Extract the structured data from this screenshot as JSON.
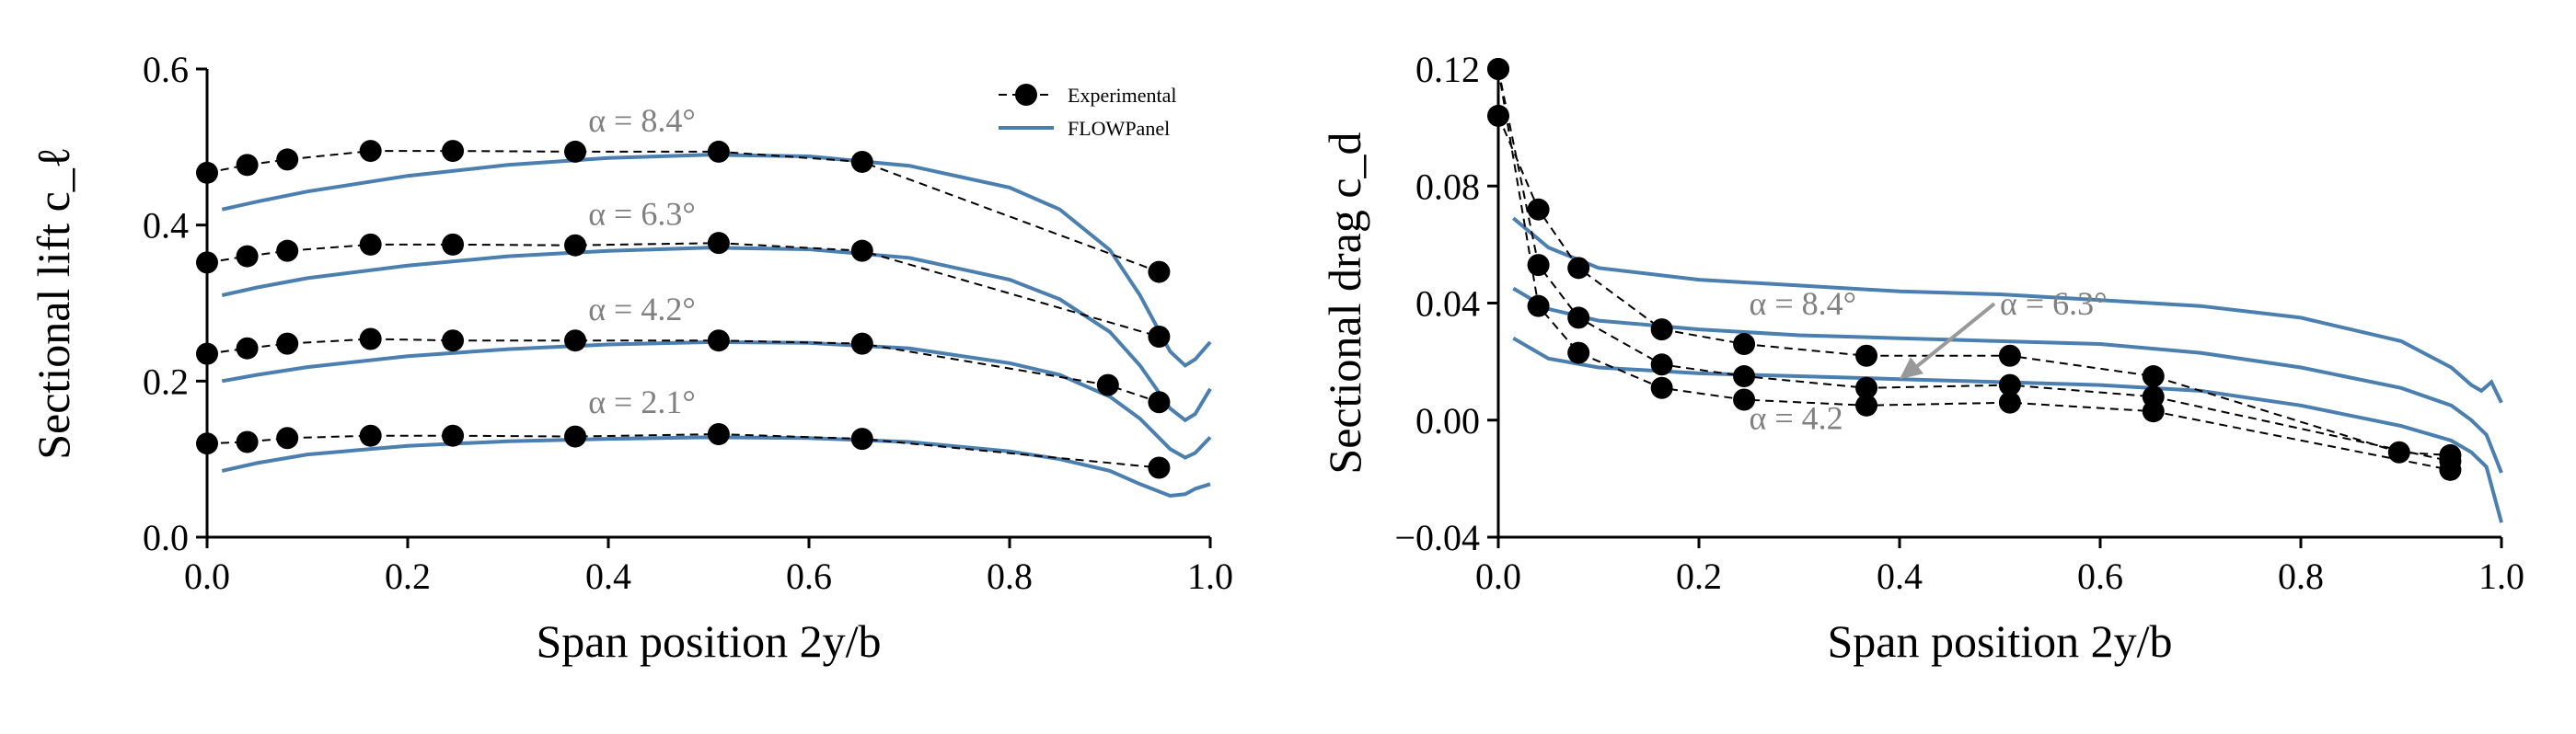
{
  "chart_data": [
    {
      "type": "line",
      "xlabel": "Span position 2y/b",
      "ylabel": "Sectional lift c_ℓ",
      "xlim": [
        0.0,
        1.0
      ],
      "ylim": [
        0.0,
        0.6
      ],
      "xticks": [
        "0.0",
        "0.2",
        "0.4",
        "0.6",
        "0.8",
        "1.0"
      ],
      "yticks": [
        "0.0",
        "0.2",
        "0.4",
        "0.6"
      ],
      "grid": false,
      "legend": {
        "position": "top-right",
        "entries": [
          {
            "label": "Experimental",
            "style": "dashed-marker",
            "color": "#000000"
          },
          {
            "label": "FLOWPanel",
            "style": "solid",
            "color": "#4a7fb0"
          }
        ]
      },
      "annotations": [
        "α = 8.4°",
        "α = 6.3°",
        "α = 4.2°",
        "α = 2.1°"
      ],
      "experimental": [
        {
          "alpha": "8.4",
          "x": [
            0.0,
            0.04,
            0.08,
            0.163,
            0.245,
            0.367,
            0.51,
            0.653,
            0.949
          ],
          "y": [
            0.467,
            0.477,
            0.484,
            0.495,
            0.495,
            0.494,
            0.494,
            0.481,
            0.34
          ]
        },
        {
          "alpha": "6.3",
          "x": [
            0.0,
            0.04,
            0.08,
            0.163,
            0.245,
            0.367,
            0.51,
            0.653,
            0.949
          ],
          "y": [
            0.352,
            0.36,
            0.367,
            0.375,
            0.375,
            0.374,
            0.377,
            0.367,
            0.257
          ]
        },
        {
          "alpha": "4.2",
          "x": [
            0.0,
            0.04,
            0.08,
            0.163,
            0.245,
            0.367,
            0.51,
            0.653,
            0.898,
            0.949
          ],
          "y": [
            0.235,
            0.242,
            0.248,
            0.254,
            0.252,
            0.252,
            0.252,
            0.248,
            0.195,
            0.173
          ]
        },
        {
          "alpha": "2.1",
          "x": [
            0.0,
            0.04,
            0.08,
            0.163,
            0.245,
            0.367,
            0.51,
            0.653,
            0.949
          ],
          "y": [
            0.12,
            0.122,
            0.127,
            0.13,
            0.13,
            0.129,
            0.132,
            0.126,
            0.089
          ]
        }
      ],
      "model": [
        {
          "alpha": "8.4",
          "x": [
            0.015,
            0.05,
            0.1,
            0.2,
            0.3,
            0.4,
            0.5,
            0.6,
            0.7,
            0.8,
            0.85,
            0.9,
            0.93,
            0.96,
            0.975,
            0.985,
            1.0
          ],
          "y": [
            0.42,
            0.43,
            0.443,
            0.463,
            0.477,
            0.486,
            0.49,
            0.488,
            0.476,
            0.448,
            0.42,
            0.368,
            0.31,
            0.238,
            0.22,
            0.228,
            0.25
          ]
        },
        {
          "alpha": "6.3",
          "x": [
            0.015,
            0.05,
            0.1,
            0.2,
            0.3,
            0.4,
            0.5,
            0.6,
            0.7,
            0.8,
            0.85,
            0.9,
            0.93,
            0.96,
            0.975,
            0.985,
            1.0
          ],
          "y": [
            0.31,
            0.32,
            0.332,
            0.348,
            0.36,
            0.367,
            0.371,
            0.369,
            0.358,
            0.33,
            0.305,
            0.263,
            0.22,
            0.165,
            0.15,
            0.158,
            0.19
          ]
        },
        {
          "alpha": "4.2",
          "x": [
            0.015,
            0.05,
            0.1,
            0.2,
            0.3,
            0.4,
            0.5,
            0.6,
            0.7,
            0.8,
            0.85,
            0.9,
            0.93,
            0.96,
            0.975,
            0.985,
            1.0
          ],
          "y": [
            0.2,
            0.208,
            0.218,
            0.232,
            0.241,
            0.247,
            0.25,
            0.249,
            0.242,
            0.223,
            0.208,
            0.18,
            0.152,
            0.113,
            0.102,
            0.108,
            0.128
          ]
        },
        {
          "alpha": "2.1",
          "x": [
            0.015,
            0.05,
            0.1,
            0.2,
            0.3,
            0.4,
            0.5,
            0.6,
            0.7,
            0.8,
            0.85,
            0.9,
            0.93,
            0.96,
            0.975,
            0.985,
            1.0
          ],
          "y": [
            0.085,
            0.095,
            0.106,
            0.117,
            0.123,
            0.126,
            0.128,
            0.127,
            0.122,
            0.11,
            0.1,
            0.085,
            0.068,
            0.053,
            0.055,
            0.062,
            0.068
          ]
        }
      ]
    },
    {
      "type": "line",
      "xlabel": "Span position 2y/b",
      "ylabel": "Sectional drag c_d",
      "xlim": [
        0.0,
        1.0
      ],
      "ylim": [
        -0.04,
        0.12
      ],
      "xticks": [
        "0.0",
        "0.2",
        "0.4",
        "0.6",
        "0.8",
        "1.0"
      ],
      "yticks": [
        "−0.04",
        "0.00",
        "0.04",
        "0.08",
        "0.12"
      ],
      "grid": false,
      "annotations": [
        "α = 8.4°",
        "α = 6.3°",
        "α = 4.2"
      ],
      "experimental": [
        {
          "alpha": "8.4",
          "x": [
            0.0,
            0.04,
            0.08,
            0.163,
            0.245,
            0.367,
            0.51,
            0.653,
            0.898,
            0.949
          ],
          "y": [
            0.104,
            0.072,
            0.052,
            0.031,
            0.026,
            0.022,
            0.022,
            0.015,
            -0.011,
            -0.012
          ]
        },
        {
          "alpha": "6.3",
          "x": [
            0.0,
            0.04,
            0.08,
            0.163,
            0.245,
            0.367,
            0.51,
            0.653,
            0.949
          ],
          "y": [
            0.12,
            0.053,
            0.035,
            0.019,
            0.015,
            0.011,
            0.012,
            0.008,
            -0.014
          ]
        },
        {
          "alpha": "4.2",
          "x": [
            0.0,
            0.04,
            0.08,
            0.163,
            0.245,
            0.367,
            0.51,
            0.653,
            0.949
          ],
          "y": [
            0.12,
            0.039,
            0.023,
            0.011,
            0.007,
            0.005,
            0.006,
            0.003,
            -0.017
          ]
        }
      ],
      "model": [
        {
          "alpha": "8.4",
          "x": [
            0.015,
            0.05,
            0.1,
            0.2,
            0.3,
            0.4,
            0.5,
            0.6,
            0.7,
            0.8,
            0.9,
            0.95,
            0.97,
            0.98,
            0.99,
            1.0
          ],
          "y": [
            0.069,
            0.059,
            0.052,
            0.048,
            0.046,
            0.044,
            0.043,
            0.041,
            0.039,
            0.035,
            0.027,
            0.018,
            0.012,
            0.01,
            0.013,
            0.006
          ]
        },
        {
          "alpha": "6.3",
          "x": [
            0.015,
            0.05,
            0.1,
            0.2,
            0.3,
            0.4,
            0.5,
            0.6,
            0.7,
            0.8,
            0.9,
            0.95,
            0.97,
            0.985,
            1.0
          ],
          "y": [
            0.045,
            0.038,
            0.034,
            0.031,
            0.029,
            0.028,
            0.027,
            0.026,
            0.023,
            0.018,
            0.011,
            0.005,
            0.0,
            -0.005,
            -0.018
          ]
        },
        {
          "alpha": "4.2",
          "x": [
            0.015,
            0.05,
            0.1,
            0.2,
            0.3,
            0.4,
            0.5,
            0.6,
            0.7,
            0.8,
            0.9,
            0.95,
            0.97,
            0.985,
            1.0
          ],
          "y": [
            0.028,
            0.021,
            0.018,
            0.016,
            0.015,
            0.014,
            0.013,
            0.012,
            0.01,
            0.005,
            -0.002,
            -0.007,
            -0.011,
            -0.016,
            -0.035
          ]
        }
      ]
    }
  ]
}
